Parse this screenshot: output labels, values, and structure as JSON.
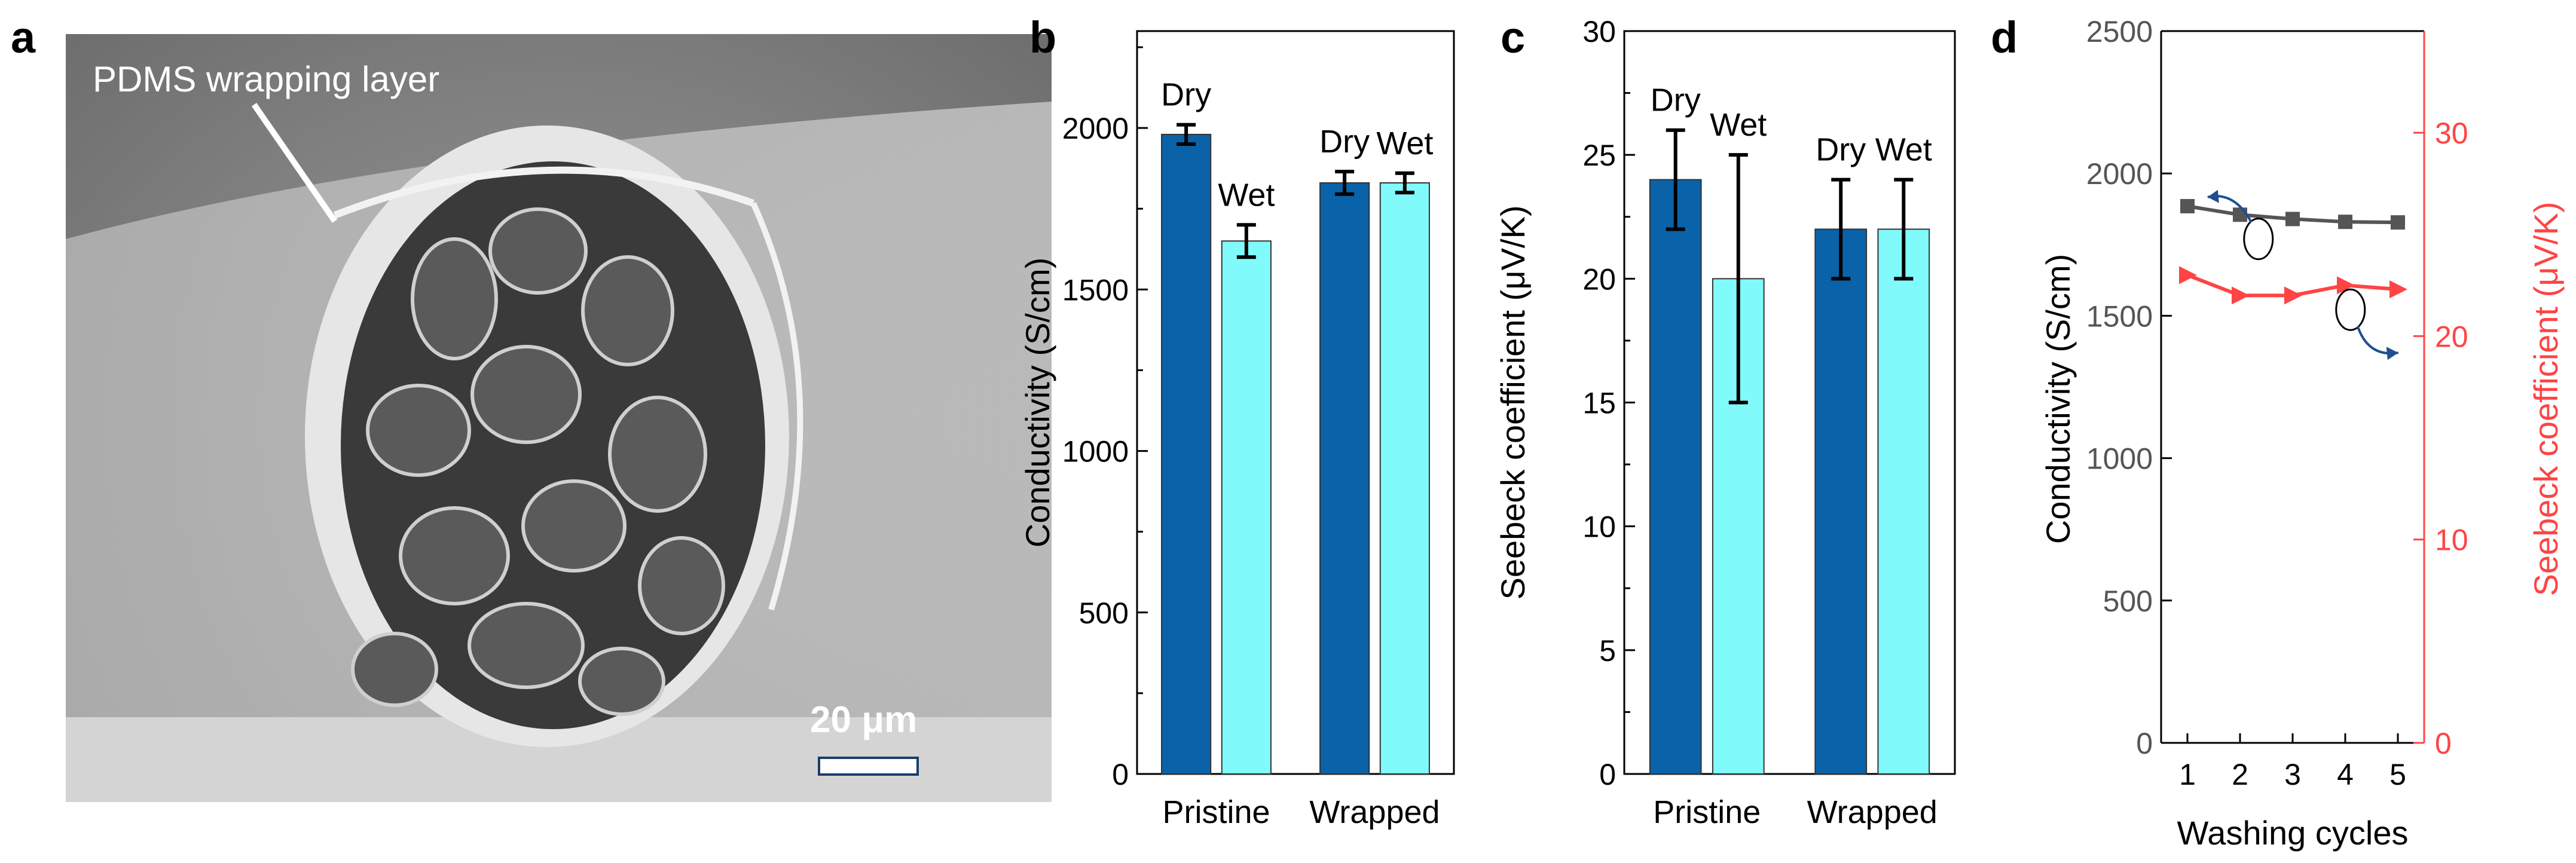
{
  "colors": {
    "dry": "#0a62a8",
    "wet": "#80fafa",
    "conductivity_line": "#555555",
    "seebeck_line": "#ff4444",
    "arrow": "#1f4f8f"
  },
  "panel_a": {
    "label": "a",
    "annotation": "PDMS wrapping layer",
    "scale_bar_label": "20 μm"
  },
  "chart_data": [
    {
      "type": "bar",
      "panel_label": "b",
      "categories": [
        "Pristine",
        "Wrapped"
      ],
      "series": [
        {
          "name": "Dry",
          "values": [
            1980,
            1830
          ],
          "errors": [
            30,
            35
          ],
          "bar_labels": [
            "Dry",
            "Dry"
          ]
        },
        {
          "name": "Wet",
          "values": [
            1650,
            1830
          ],
          "errors": [
            50,
            30
          ],
          "bar_labels": [
            "Wet",
            "Wet"
          ]
        }
      ],
      "ylabel": "Conductivity (S/cm)",
      "ylim": [
        0,
        2300
      ],
      "yticks": [
        0,
        500,
        1000,
        1500,
        2000
      ]
    },
    {
      "type": "bar",
      "panel_label": "c",
      "categories": [
        "Pristine",
        "Wrapped"
      ],
      "series": [
        {
          "name": "Dry",
          "values": [
            24,
            22
          ],
          "errors": [
            2,
            2
          ],
          "bar_labels": [
            "Dry",
            "Dry"
          ]
        },
        {
          "name": "Wet",
          "values": [
            20,
            22
          ],
          "errors": [
            5,
            2
          ],
          "bar_labels": [
            "Wet",
            "Wet"
          ]
        }
      ],
      "ylabel": "Seebeck coefficient (μV/K)",
      "ylim": [
        0,
        30
      ],
      "yticks": [
        0,
        5,
        10,
        15,
        20,
        25,
        30
      ]
    },
    {
      "type": "line",
      "panel_label": "d",
      "x": [
        1,
        2,
        3,
        4,
        5
      ],
      "xticks": [
        1,
        2,
        3,
        4,
        5
      ],
      "xlabel": "Washing cycles",
      "xlim": [
        0.5,
        5.5
      ],
      "series": [
        {
          "name": "Conductivity",
          "axis": "left",
          "y": [
            1885,
            1855,
            1840,
            1830,
            1828
          ],
          "marker": "square"
        },
        {
          "name": "Seebeck coefficient",
          "axis": "right",
          "y": [
            23,
            22,
            22,
            22.5,
            22.3
          ],
          "marker": "triangle-right"
        }
      ],
      "ylabel_left": "Conductivity (S/cm)",
      "ylim_left": [
        0,
        2500
      ],
      "yticks_left": [
        0,
        500,
        1000,
        1500,
        2000,
        2500
      ],
      "ylabel_right": "Seebeck coefficient (μV/K)",
      "ylim_right": [
        0,
        35
      ],
      "yticks_right": [
        0,
        10,
        20,
        30
      ]
    }
  ]
}
